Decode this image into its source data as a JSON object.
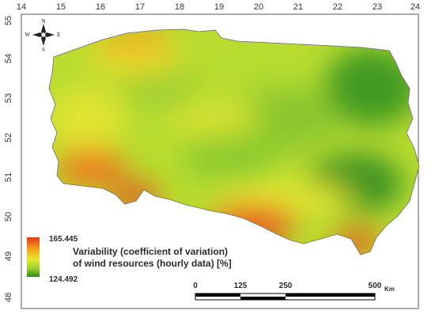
{
  "map": {
    "longitude_ticks": [
      "14",
      "15",
      "16",
      "17",
      "18",
      "19",
      "20",
      "21",
      "22",
      "23",
      "24"
    ],
    "latitude_ticks": [
      "55",
      "54",
      "53",
      "52",
      "51",
      "50",
      "49",
      "48"
    ],
    "colors": {
      "max": "#e23a1a",
      "mid_high": "#f6a21a",
      "mid": "#ecec30",
      "mid_low": "#9ed230",
      "min": "#2f8a20",
      "frame": "#555555",
      "background": "#ffffff"
    }
  },
  "legend": {
    "max_value": "165.445",
    "min_value": "124.492",
    "title_line1": "Variability (coefficient of variation)",
    "title_line2": "of wind resources (hourly data) [%]"
  },
  "scalebar": {
    "labels": [
      "0",
      "125",
      "250",
      "500"
    ],
    "unit": "Km"
  },
  "compass": {
    "north": "N",
    "south": "S",
    "east": "E",
    "west": "W"
  }
}
